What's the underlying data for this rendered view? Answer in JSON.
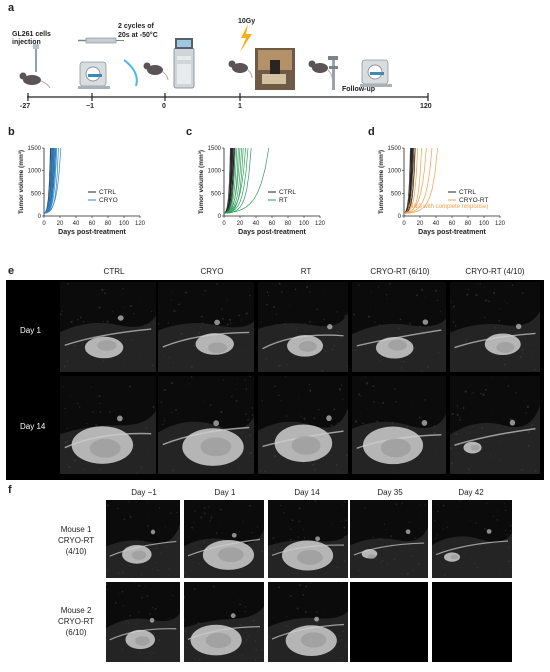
{
  "panel_a": {
    "label": "a",
    "event_injection": "GL261 cells\ninjection",
    "event_cryo": "2 cycles of\n20s at -50°C",
    "event_rt": "10Gy",
    "event_followup": "Follow-up",
    "ticks": [
      "-27",
      "−1",
      "0",
      "1",
      "120"
    ]
  },
  "chart_data": [
    {
      "type": "line",
      "panel": "b",
      "ylabel": "Tumor volume (mm³)",
      "xlabel": "Days post-treatment",
      "xticks": [
        "0",
        "20",
        "40",
        "60",
        "80",
        "100",
        "120"
      ],
      "yticks": [
        "0",
        "500",
        "1000",
        "1500"
      ],
      "xlim": [
        0,
        120
      ],
      "ylim": [
        0,
        1500
      ],
      "legend_placement": "center-right",
      "series": [
        {
          "name": "CTRL",
          "color": "#222222",
          "end_days": [
            8,
            9,
            10,
            10,
            11,
            12,
            13,
            14,
            9,
            11
          ]
        },
        {
          "name": "CRYO",
          "color": "#2f86c8",
          "end_days": [
            9,
            10,
            11,
            12,
            13,
            14,
            15,
            16,
            18,
            21
          ]
        }
      ]
    },
    {
      "type": "line",
      "panel": "c",
      "ylabel": "Tumor volume (mm³)",
      "xlabel": "Days post-treatment",
      "xticks": [
        "0",
        "20",
        "40",
        "60",
        "80",
        "100",
        "120"
      ],
      "yticks": [
        "0",
        "500",
        "1000",
        "1500"
      ],
      "xlim": [
        0,
        120
      ],
      "ylim": [
        0,
        1500
      ],
      "legend_placement": "center-right",
      "series": [
        {
          "name": "CTRL",
          "color": "#222222",
          "end_days": [
            8,
            9,
            10,
            10,
            11,
            12,
            13,
            14,
            9,
            11
          ]
        },
        {
          "name": "RT",
          "color": "#2e9e5b",
          "end_days": [
            14,
            16,
            18,
            20,
            22,
            24,
            27,
            30,
            34,
            56
          ]
        }
      ]
    },
    {
      "type": "line",
      "panel": "d",
      "ylabel": "Tumor volume (mm³)",
      "xlabel": "Days post-treatment",
      "xticks": [
        "0",
        "20",
        "40",
        "60",
        "80",
        "100",
        "120"
      ],
      "yticks": [
        "0",
        "500",
        "1000",
        "1500"
      ],
      "xlim": [
        0,
        120
      ],
      "ylim": [
        0,
        1500
      ],
      "legend_placement": "center-right",
      "annotation": "(4/10 with complete response)",
      "series": [
        {
          "name": "CTRL",
          "color": "#222222",
          "end_days": [
            8,
            9,
            10,
            10,
            11,
            12,
            13,
            14,
            9,
            11
          ]
        },
        {
          "name": "CRYO-RT",
          "color": "#f0a04b",
          "end_days": [
            13,
            17,
            22,
            28,
            35,
            42
          ]
        }
      ]
    }
  ],
  "panel_b": {
    "label": "b"
  },
  "panel_c": {
    "label": "c"
  },
  "panel_d": {
    "label": "d"
  },
  "panel_e": {
    "label": "e",
    "columns": [
      "CTRL",
      "CRYO",
      "RT",
      "CRYO-RT (6/10)",
      "CRYO-RT (4/10)"
    ],
    "rows": [
      "Day 1",
      "Day 14"
    ]
  },
  "panel_f": {
    "label": "f",
    "columns": [
      "Day −1",
      "Day 1",
      "Day 14",
      "Day 35",
      "Day 42"
    ],
    "rows": [
      "Mouse 1\nCRYO-RT\n(4/10)",
      "Mouse 2\nCRYO-RT\n(6/10)"
    ]
  }
}
